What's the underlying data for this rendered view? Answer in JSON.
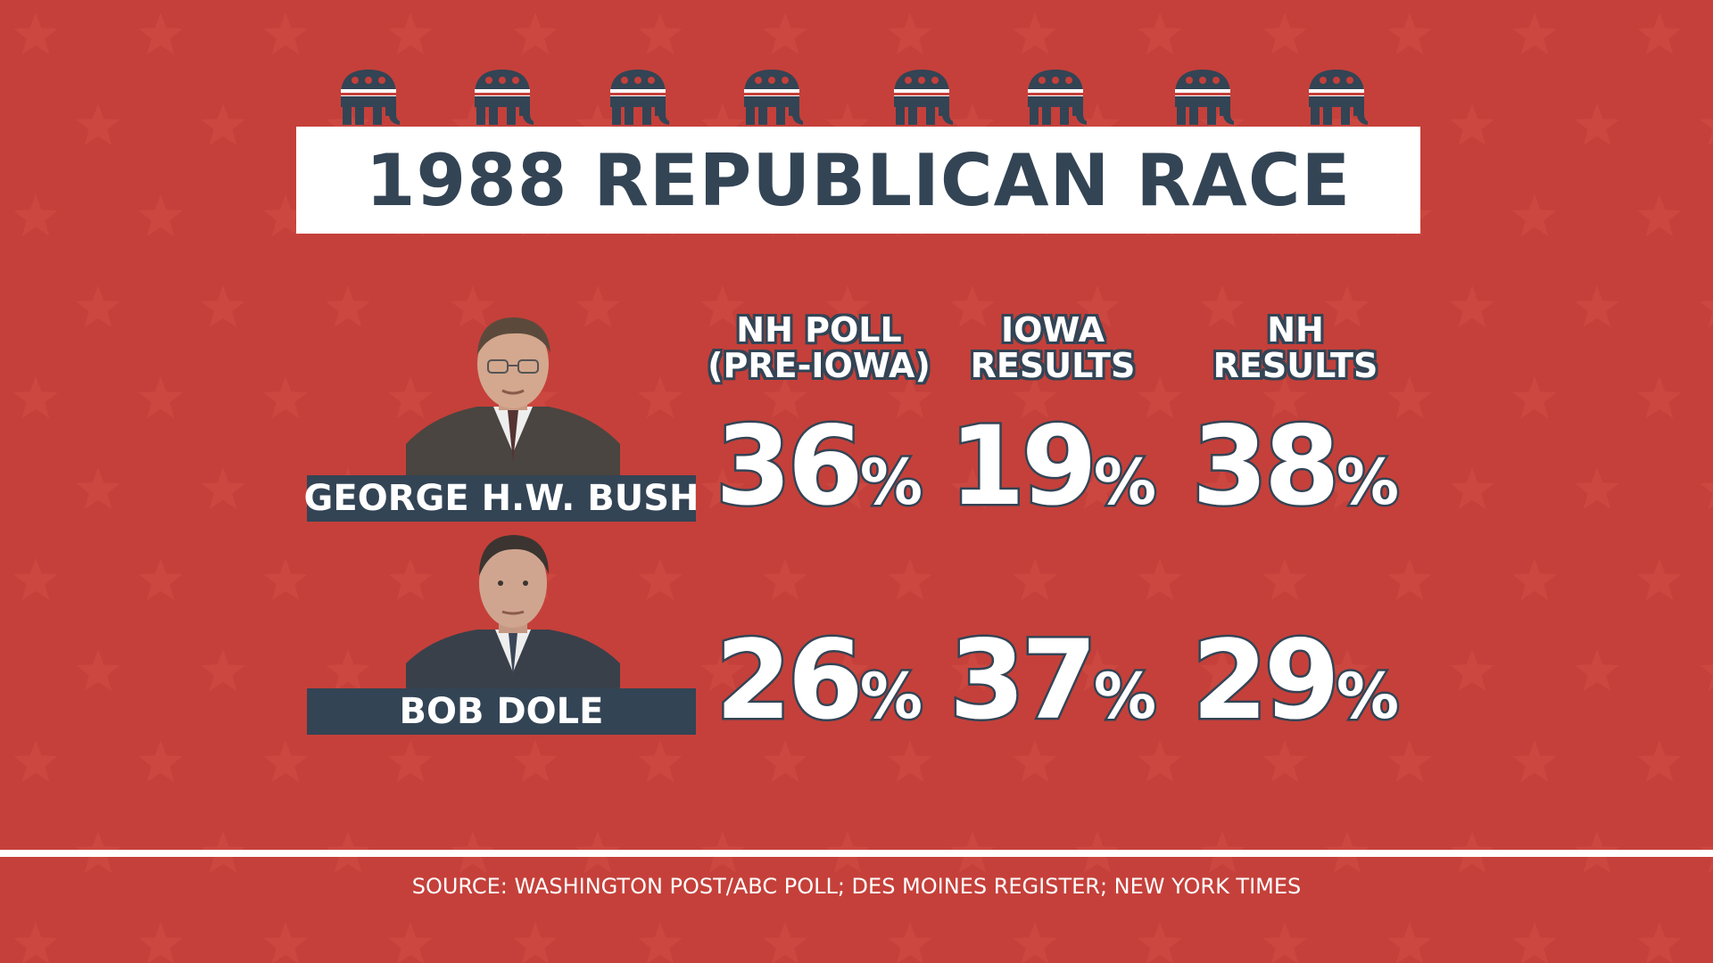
{
  "title": "1988 REPUBLICAN RACE",
  "colors": {
    "background": "#c5403a",
    "navy": "#334455",
    "white": "#ffffff"
  },
  "icons": [
    "republican-elephant-icon",
    "star-pattern"
  ],
  "chart_data": {
    "type": "table",
    "title": "1988 REPUBLICAN RACE",
    "columns": [
      {
        "line1": "NH POLL",
        "line2": "(PRE-IOWA)"
      },
      {
        "line1": "IOWA",
        "line2": "RESULTS"
      },
      {
        "line1": "NH",
        "line2": "RESULTS"
      }
    ],
    "unit": "%",
    "rows": [
      {
        "name": "GEORGE H.W. BUSH",
        "values": [
          36,
          19,
          38
        ]
      },
      {
        "name": "BOB DOLE",
        "values": [
          26,
          37,
          29
        ]
      }
    ]
  },
  "source": "SOURCE: WASHINGTON POST/ABC POLL; DES MOINES REGISTER; NEW YORK TIMES"
}
